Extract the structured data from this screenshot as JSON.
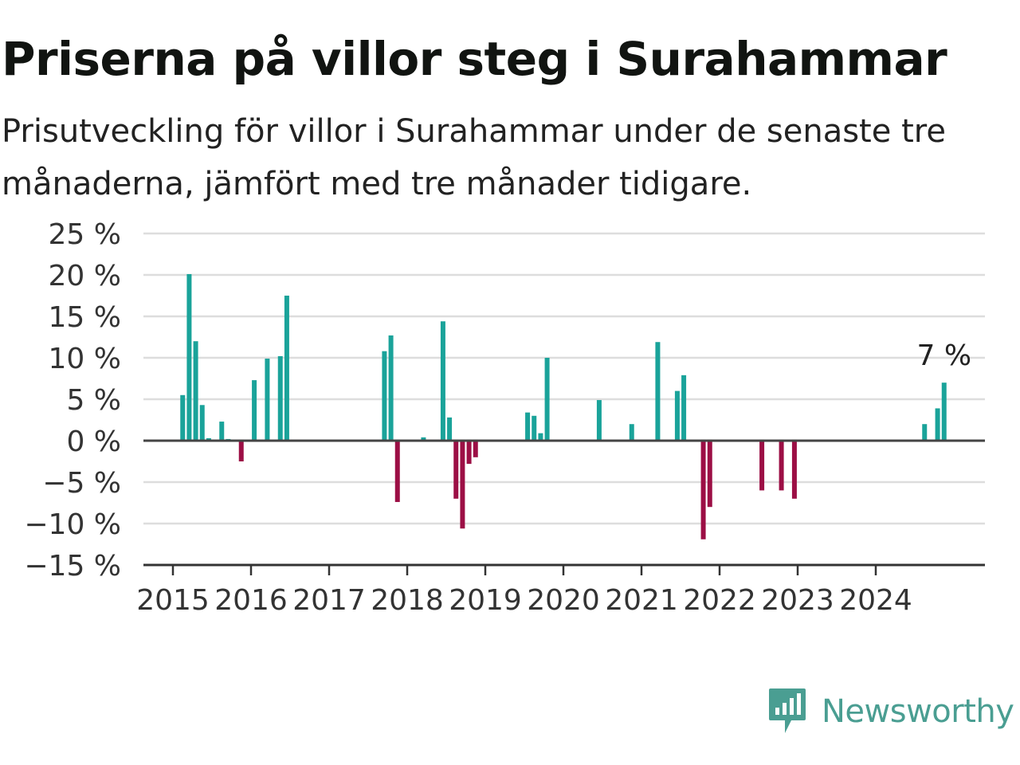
{
  "title": "Priserna på villor steg i Surahammar",
  "subtitle": "Prisutveckling för villor i Surahammar under de senaste tre månaderna, jämfört med tre månader tidigare.",
  "brand": {
    "name": "Newsworthy",
    "color": "#4a9e92",
    "icon": "newsworthy-logo-icon"
  },
  "colors": {
    "positive": "#1aa39a",
    "negative": "#9c0f45",
    "grid": "#dddddd",
    "zero": "#444444"
  },
  "chart_data": {
    "type": "bar",
    "x_unit": "month",
    "ylim": [
      -15,
      25
    ],
    "y_ticks": [
      25,
      20,
      15,
      10,
      5,
      0,
      -5,
      -10,
      -15
    ],
    "y_tick_labels": [
      "25 %",
      "20 %",
      "15 %",
      "10 %",
      "5 %",
      "0 %",
      "−5 %",
      "−10 %",
      "−15 %"
    ],
    "x_ticks": [
      "2015",
      "2016",
      "2017",
      "2018",
      "2019",
      "2020",
      "2021",
      "2022",
      "2023",
      "2024"
    ],
    "grid": true,
    "annotation": {
      "date": "2024-11",
      "text": "7 %"
    },
    "points": [
      {
        "date": "2015-02",
        "value": 5.5
      },
      {
        "date": "2015-03",
        "value": 20.1
      },
      {
        "date": "2015-04",
        "value": 12.0
      },
      {
        "date": "2015-05",
        "value": 4.3
      },
      {
        "date": "2015-06",
        "value": 0.3
      },
      {
        "date": "2015-08",
        "value": 2.3
      },
      {
        "date": "2015-09",
        "value": 0.2
      },
      {
        "date": "2015-11",
        "value": -2.5
      },
      {
        "date": "2016-01",
        "value": 7.3
      },
      {
        "date": "2016-03",
        "value": 9.9
      },
      {
        "date": "2016-05",
        "value": 10.2
      },
      {
        "date": "2016-06",
        "value": 17.5
      },
      {
        "date": "2017-09",
        "value": 10.8
      },
      {
        "date": "2017-10",
        "value": 12.7
      },
      {
        "date": "2017-11",
        "value": -7.4
      },
      {
        "date": "2018-03",
        "value": 0.4
      },
      {
        "date": "2018-06",
        "value": 14.4
      },
      {
        "date": "2018-07",
        "value": 2.8
      },
      {
        "date": "2018-08",
        "value": -7.0
      },
      {
        "date": "2018-09",
        "value": -10.6
      },
      {
        "date": "2018-10",
        "value": -2.8
      },
      {
        "date": "2018-11",
        "value": -2.0
      },
      {
        "date": "2019-07",
        "value": 3.4
      },
      {
        "date": "2019-08",
        "value": 3.0
      },
      {
        "date": "2019-09",
        "value": 0.9
      },
      {
        "date": "2019-10",
        "value": 10.0
      },
      {
        "date": "2020-06",
        "value": 4.9
      },
      {
        "date": "2020-11",
        "value": 2.0
      },
      {
        "date": "2021-03",
        "value": 11.9
      },
      {
        "date": "2021-06",
        "value": 6.0
      },
      {
        "date": "2021-07",
        "value": 7.9
      },
      {
        "date": "2021-10",
        "value": -11.9
      },
      {
        "date": "2021-11",
        "value": -8.0
      },
      {
        "date": "2022-07",
        "value": -6.0
      },
      {
        "date": "2022-10",
        "value": -6.0
      },
      {
        "date": "2022-12",
        "value": -7.0
      },
      {
        "date": "2024-08",
        "value": 2.0
      },
      {
        "date": "2024-10",
        "value": 3.9
      },
      {
        "date": "2024-11",
        "value": 7.0
      }
    ]
  }
}
